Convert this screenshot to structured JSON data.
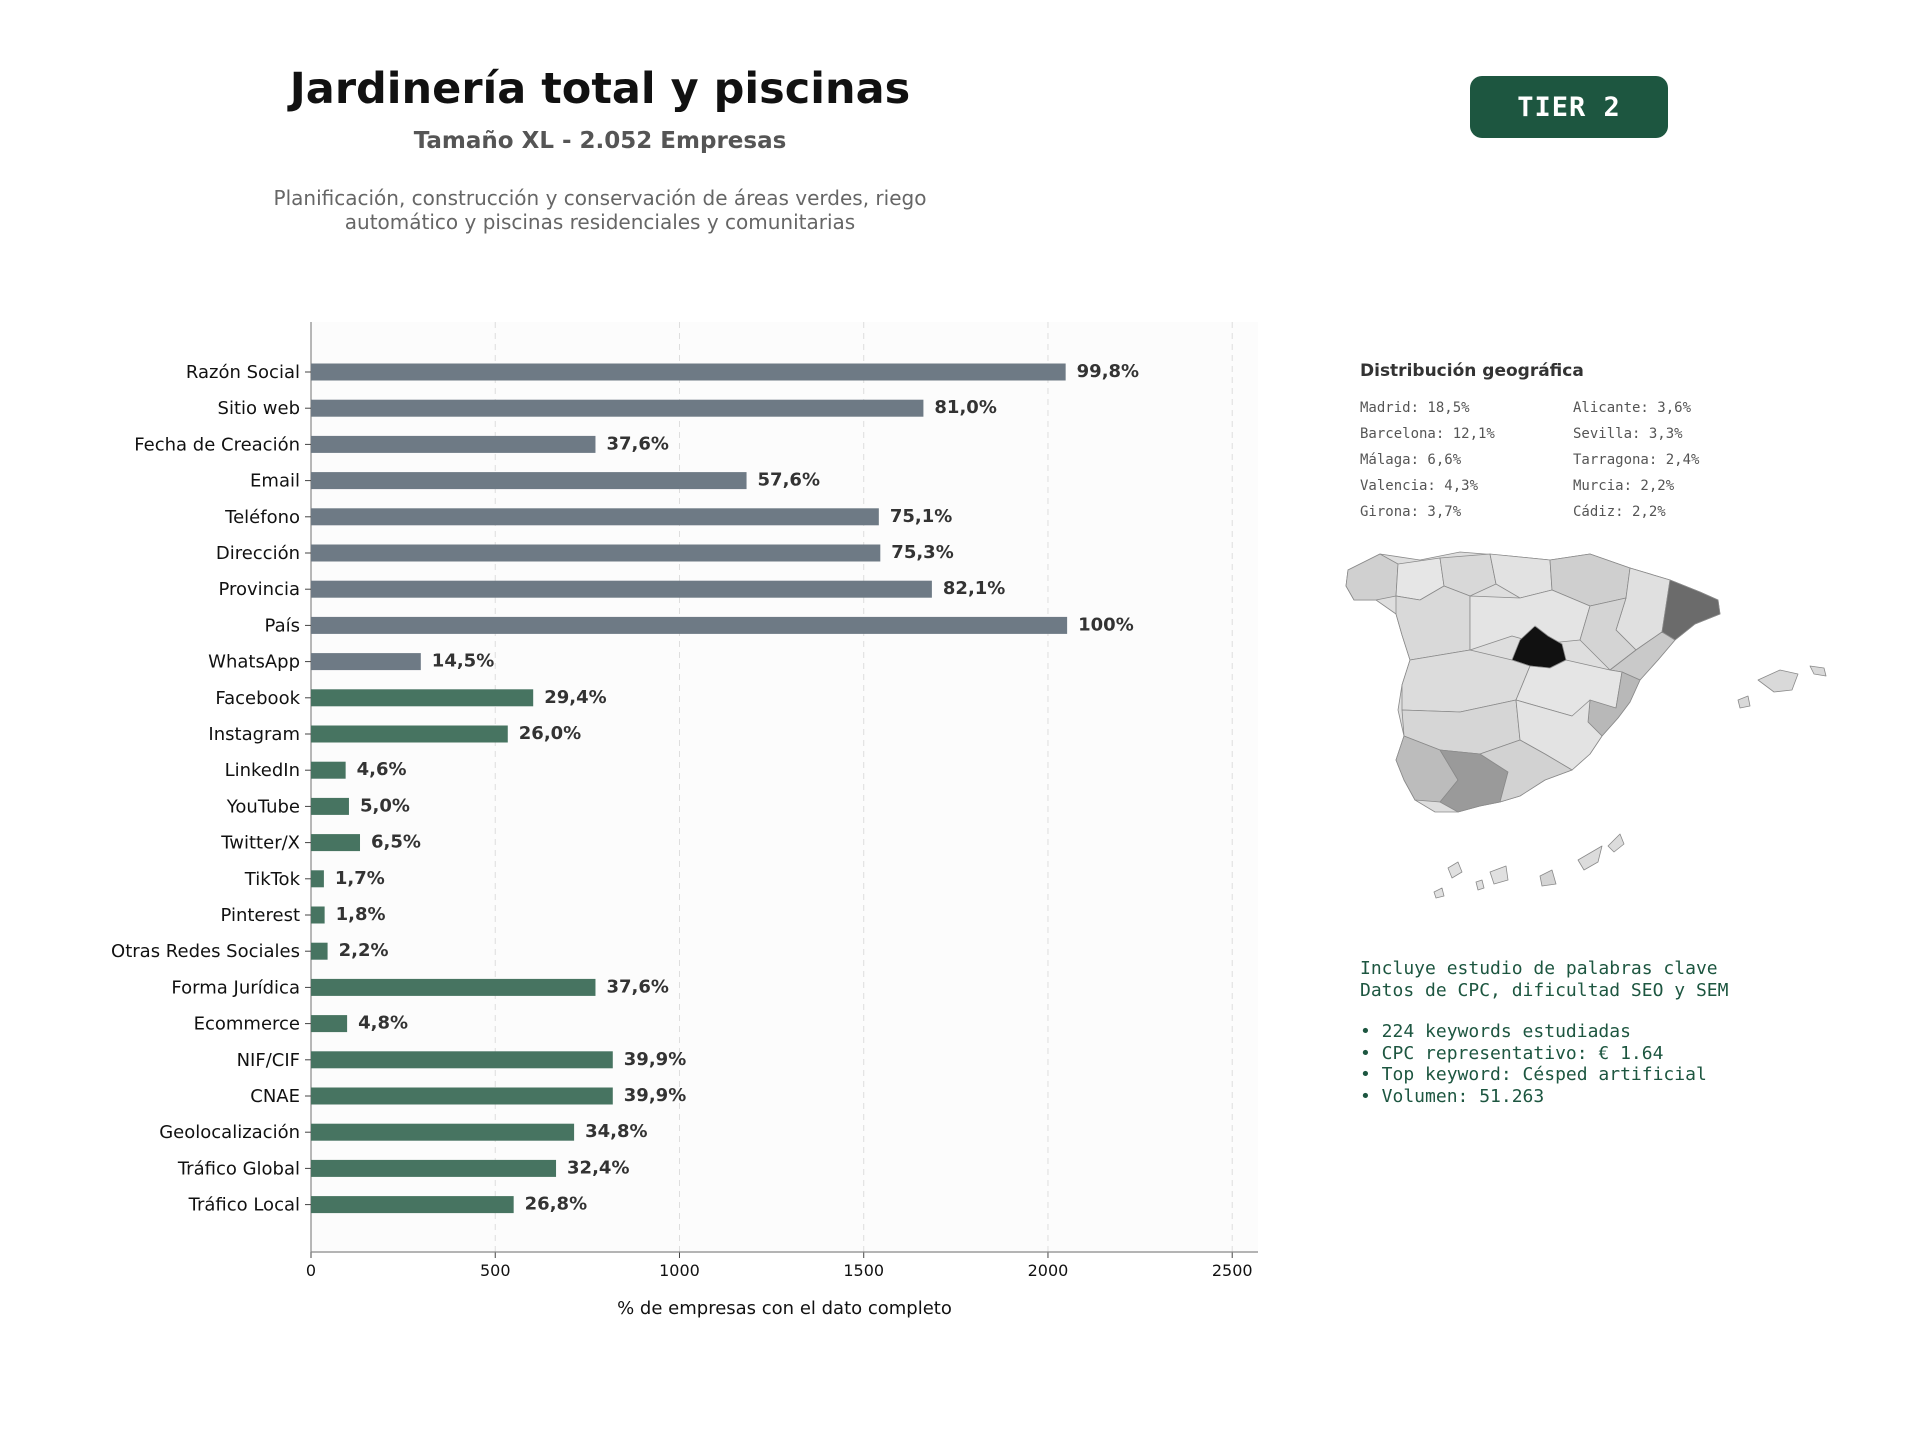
{
  "header": {
    "title": "Jardinería total y piscinas",
    "subtitle": "Tamaño XL - 2.052 Empresas",
    "description": "Planificación, construcción y conservación de áreas verdes, riego\nautomático y piscinas residenciales y comunitarias",
    "tier": "TIER 2"
  },
  "chart_data": {
    "type": "bar",
    "orientation": "horizontal",
    "xlabel": "% de empresas con el dato completo",
    "xlim": [
      0,
      2570
    ],
    "xticks": [
      0,
      500,
      1000,
      1500,
      2000,
      2500
    ],
    "grid": "x-dashed",
    "series_colors": {
      "grey": "#6e7a85",
      "green": "#477461"
    },
    "categories": [
      "Razón Social",
      "Sitio web",
      "Fecha de Creación",
      "Email",
      "Teléfono",
      "Dirección",
      "Provincia",
      "País",
      "WhatsApp",
      "Facebook",
      "Instagram",
      "LinkedIn",
      "YouTube",
      "Twitter/X",
      "TikTok",
      "Pinterest",
      "Otras Redes Sociales",
      "Forma Jurídica",
      "Ecommerce",
      "NIF/CIF",
      "CNAE",
      "Geolocalización",
      "Tráfico Global",
      "Tráfico Local"
    ],
    "values": [
      2048,
      1662,
      772,
      1182,
      1541,
      1545,
      1685,
      2052,
      298,
      603,
      534,
      94,
      103,
      133,
      35,
      37,
      45,
      772,
      98,
      819,
      819,
      714,
      665,
      550
    ],
    "labels": [
      "99,8%",
      "81,0%",
      "37,6%",
      "57,6%",
      "75,1%",
      "75,3%",
      "82,1%",
      "100%",
      "14,5%",
      "29,4%",
      "26,0%",
      "4,6%",
      "5,0%",
      "6,5%",
      "1,7%",
      "1,8%",
      "2,2%",
      "37,6%",
      "4,8%",
      "39,9%",
      "39,9%",
      "34,8%",
      "32,4%",
      "26,8%"
    ],
    "colors": [
      "grey",
      "grey",
      "grey",
      "grey",
      "grey",
      "grey",
      "grey",
      "grey",
      "grey",
      "green",
      "green",
      "green",
      "green",
      "green",
      "green",
      "green",
      "green",
      "green",
      "green",
      "green",
      "green",
      "green",
      "green",
      "green"
    ]
  },
  "geo": {
    "title": "Distribución geográfica",
    "items": [
      "Madrid: 18,5%",
      "Alicante: 3,6%",
      "Barcelona: 12,1%",
      "Sevilla: 3,3%",
      "Málaga: 6,6%",
      "Tarragona: 2,4%",
      "Valencia: 4,3%",
      "Murcia: 2,2%",
      "Girona: 3,7%",
      "Cádiz: 2,2%"
    ]
  },
  "keywords": {
    "line1": "Incluye estudio de palabras clave",
    "line2": "Datos de CPC, dificultad SEO y SEM",
    "bullets": [
      "• 224 keywords estudiadas",
      "• CPC representativo: € 1.64",
      "• Top keyword: Césped artificial",
      "• Volumen: 51.263"
    ]
  }
}
